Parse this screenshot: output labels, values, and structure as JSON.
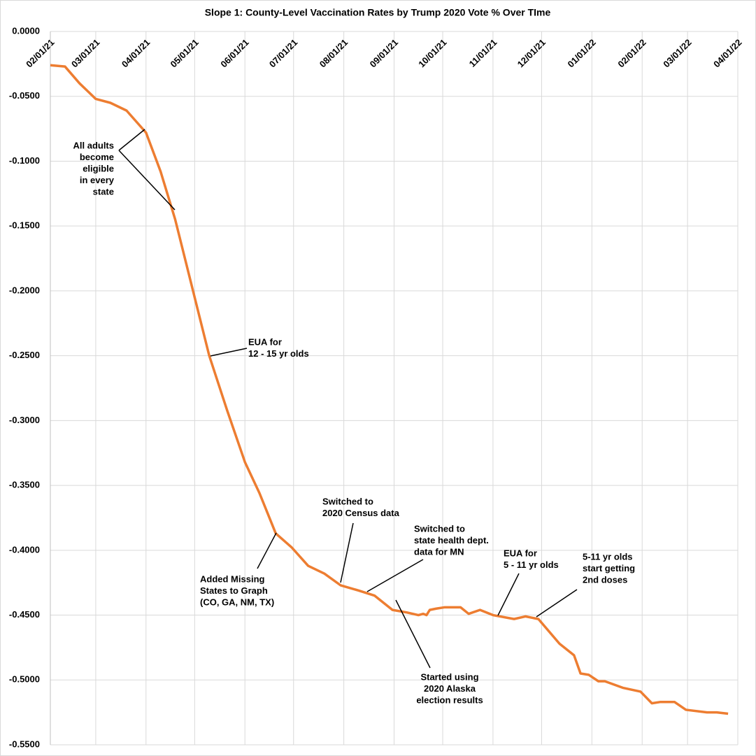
{
  "chart_data": {
    "type": "line",
    "title": "Slope 1: County-Level Vaccination Rates by Trump 2020 Vote % Over TIme",
    "x": [
      "2021-02-01",
      "2021-02-10",
      "2021-02-19",
      "2021-03-01",
      "2021-03-10",
      "2021-03-20",
      "2021-04-01",
      "2021-04-10",
      "2021-04-19",
      "2021-04-30",
      "2021-05-10",
      "2021-05-21",
      "2021-06-01",
      "2021-06-10",
      "2021-06-20",
      "2021-06-30",
      "2021-07-10",
      "2021-07-20",
      "2021-07-30",
      "2021-08-10",
      "2021-08-20",
      "2021-08-31",
      "2021-09-09",
      "2021-09-16",
      "2021-09-19",
      "2021-09-21",
      "2021-09-23",
      "2021-09-27",
      "2021-10-02",
      "2021-10-12",
      "2021-10-17",
      "2021-10-24",
      "2021-11-01",
      "2021-11-14",
      "2021-11-21",
      "2021-11-29",
      "2021-12-12",
      "2021-12-21",
      "2021-12-25",
      "2021-12-30",
      "2022-01-05",
      "2022-01-09",
      "2022-01-20",
      "2022-01-31",
      "2022-02-07",
      "2022-02-12",
      "2022-02-21",
      "2022-02-28",
      "2022-03-13",
      "2022-03-19",
      "2022-03-26"
    ],
    "series": [
      {
        "name": "Slope 1",
        "color": "#ed7d31",
        "values": [
          -0.026,
          -0.027,
          -0.04,
          -0.052,
          -0.055,
          -0.061,
          -0.078,
          -0.108,
          -0.145,
          -0.2,
          -0.25,
          -0.292,
          -0.332,
          -0.356,
          -0.387,
          -0.398,
          -0.412,
          -0.418,
          -0.427,
          -0.431,
          -0.435,
          -0.446,
          -0.448,
          -0.45,
          -0.449,
          -0.45,
          -0.446,
          -0.445,
          -0.444,
          -0.444,
          -0.449,
          -0.446,
          -0.45,
          -0.453,
          -0.451,
          -0.453,
          -0.472,
          -0.481,
          -0.495,
          -0.496,
          -0.501,
          -0.501,
          -0.506,
          -0.509,
          -0.518,
          -0.517,
          -0.517,
          -0.523,
          -0.525,
          -0.525,
          -0.526
        ]
      }
    ],
    "xlim": [
      "2021-02-01",
      "2022-04-01"
    ],
    "xticks": [
      {
        "value": "2021-02-01",
        "label": "02/01/21"
      },
      {
        "value": "2021-03-01",
        "label": "03/01/21"
      },
      {
        "value": "2021-04-01",
        "label": "04/01/21"
      },
      {
        "value": "2021-05-01",
        "label": "05/01/21"
      },
      {
        "value": "2021-06-01",
        "label": "06/01/21"
      },
      {
        "value": "2021-07-01",
        "label": "07/01/21"
      },
      {
        "value": "2021-08-01",
        "label": "08/01/21"
      },
      {
        "value": "2021-09-01",
        "label": "09/01/21"
      },
      {
        "value": "2021-10-01",
        "label": "10/01/21"
      },
      {
        "value": "2021-11-01",
        "label": "11/01/21"
      },
      {
        "value": "2021-12-01",
        "label": "12/01/21"
      },
      {
        "value": "2022-01-01",
        "label": "01/01/22"
      },
      {
        "value": "2022-02-01",
        "label": "02/01/22"
      },
      {
        "value": "2022-03-01",
        "label": "03/01/22"
      },
      {
        "value": "2022-04-01",
        "label": "04/01/22"
      }
    ],
    "ylim": [
      -0.55,
      0
    ],
    "yticks": [
      {
        "value": 0,
        "label": "0.0000"
      },
      {
        "value": -0.05,
        "label": "-0.0500"
      },
      {
        "value": -0.1,
        "label": "-0.1000"
      },
      {
        "value": -0.15,
        "label": "-0.1500"
      },
      {
        "value": -0.2,
        "label": "-0.2000"
      },
      {
        "value": -0.25,
        "label": "-0.2500"
      },
      {
        "value": -0.3,
        "label": "-0.3000"
      },
      {
        "value": -0.35,
        "label": "-0.3500"
      },
      {
        "value": -0.4,
        "label": "-0.4000"
      },
      {
        "value": -0.45,
        "label": "-0.4500"
      },
      {
        "value": -0.5,
        "label": "-0.5000"
      },
      {
        "value": -0.55,
        "label": "-0.5500"
      }
    ],
    "grid": true,
    "annotations": [
      {
        "lines": [
          "All adults",
          "become",
          "eligible",
          "in every",
          "state"
        ]
      },
      {
        "lines": [
          "EUA for",
          "12 - 15 yr olds"
        ]
      },
      {
        "lines": [
          "Switched to",
          "2020 Census data"
        ]
      },
      {
        "lines": [
          "Switched to",
          "state health dept.",
          "data for MN"
        ]
      },
      {
        "lines": [
          "EUA for",
          "5 - 11 yr olds"
        ]
      },
      {
        "lines": [
          "5-11 yr olds",
          "start getting",
          "2nd doses"
        ]
      },
      {
        "lines": [
          "Added Missing",
          "States to Graph",
          "(CO, GA, NM, TX)"
        ]
      },
      {
        "lines": [
          "Started using",
          "2020 Alaska",
          "election results"
        ]
      }
    ]
  }
}
